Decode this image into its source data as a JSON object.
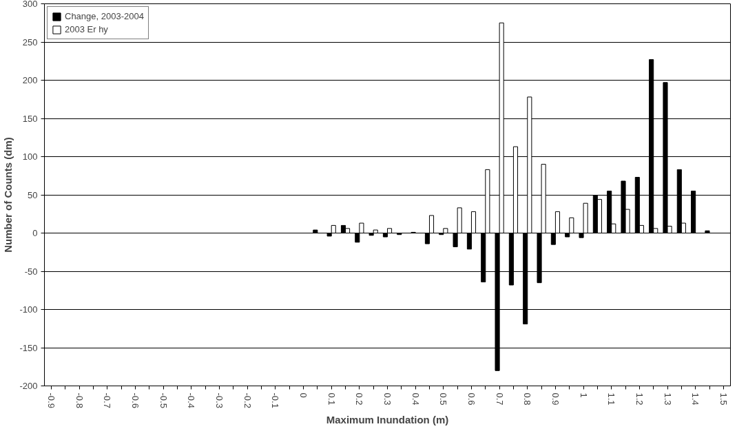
{
  "chart_data": {
    "type": "bar",
    "xlabel": "Maximum Inundation (m)",
    "ylabel": "Number of Counts (dm)",
    "x": [
      0.05,
      0.1,
      0.15,
      0.2,
      0.25,
      0.3,
      0.35,
      0.4,
      0.45,
      0.5,
      0.55,
      0.6,
      0.65,
      0.7,
      0.75,
      0.8,
      0.85,
      0.9,
      0.95,
      1.0,
      1.05,
      1.1,
      1.15,
      1.2,
      1.25,
      1.3,
      1.35,
      1.4,
      1.45
    ],
    "series": [
      {
        "name": "Change, 2003-2004",
        "color": "#000000",
        "values": [
          4,
          -4,
          10,
          -12,
          -3,
          -5,
          -2,
          1,
          -14,
          -2,
          -18,
          -21,
          -64,
          -180,
          -68,
          -119,
          -65,
          -15,
          -5,
          -6,
          49,
          55,
          68,
          73,
          227,
          197,
          83,
          55,
          3
        ]
      },
      {
        "name": "2003 Er hy",
        "color": "#ffffff",
        "values": [
          null,
          10,
          6,
          13,
          4,
          6,
          null,
          null,
          23,
          6,
          33,
          28,
          83,
          275,
          113,
          178,
          90,
          28,
          20,
          39,
          44,
          12,
          31,
          10,
          6,
          9,
          13,
          null,
          null
        ]
      }
    ],
    "xlim": [
      -0.925,
      1.525
    ],
    "xticks": [
      -0.9,
      {
        "value": -0.85,
        "label": null
      },
      -0.8,
      {
        "value": -0.75,
        "label": null
      },
      -0.7,
      {
        "value": -0.65,
        "label": null
      },
      -0.6,
      {
        "value": -0.55,
        "label": null
      },
      -0.5,
      {
        "value": -0.45,
        "label": null
      },
      -0.4,
      {
        "value": -0.35,
        "label": null
      },
      -0.3,
      {
        "value": -0.25,
        "label": null
      },
      -0.2,
      {
        "value": -0.15,
        "label": null
      },
      -0.1,
      {
        "value": -0.05,
        "label": null
      },
      0,
      {
        "value": 0.05,
        "label": null
      },
      0.1,
      {
        "value": 0.15,
        "label": null
      },
      0.2,
      {
        "value": 0.25,
        "label": null
      },
      0.3,
      {
        "value": 0.35,
        "label": null
      },
      0.4,
      {
        "value": 0.45,
        "label": null
      },
      0.5,
      {
        "value": 0.55,
        "label": null
      },
      0.6,
      {
        "value": 0.65,
        "label": null
      },
      0.7,
      {
        "value": 0.75,
        "label": null
      },
      0.8,
      {
        "value": 0.85,
        "label": null
      },
      0.9,
      {
        "value": 0.95,
        "label": null
      },
      1,
      {
        "value": 1.05,
        "label": null
      },
      1.1,
      {
        "value": 1.15,
        "label": null
      },
      1.2,
      {
        "value": 1.25,
        "label": null
      },
      1.3,
      {
        "value": 1.35,
        "label": null
      },
      1.4,
      {
        "value": 1.45,
        "label": null
      },
      1.5
    ],
    "ylim": [
      -200,
      300
    ],
    "yticks": [
      -200,
      -150,
      -100,
      -50,
      0,
      50,
      100,
      150,
      200,
      250,
      300
    ],
    "grid": "y",
    "legend": "top left"
  }
}
